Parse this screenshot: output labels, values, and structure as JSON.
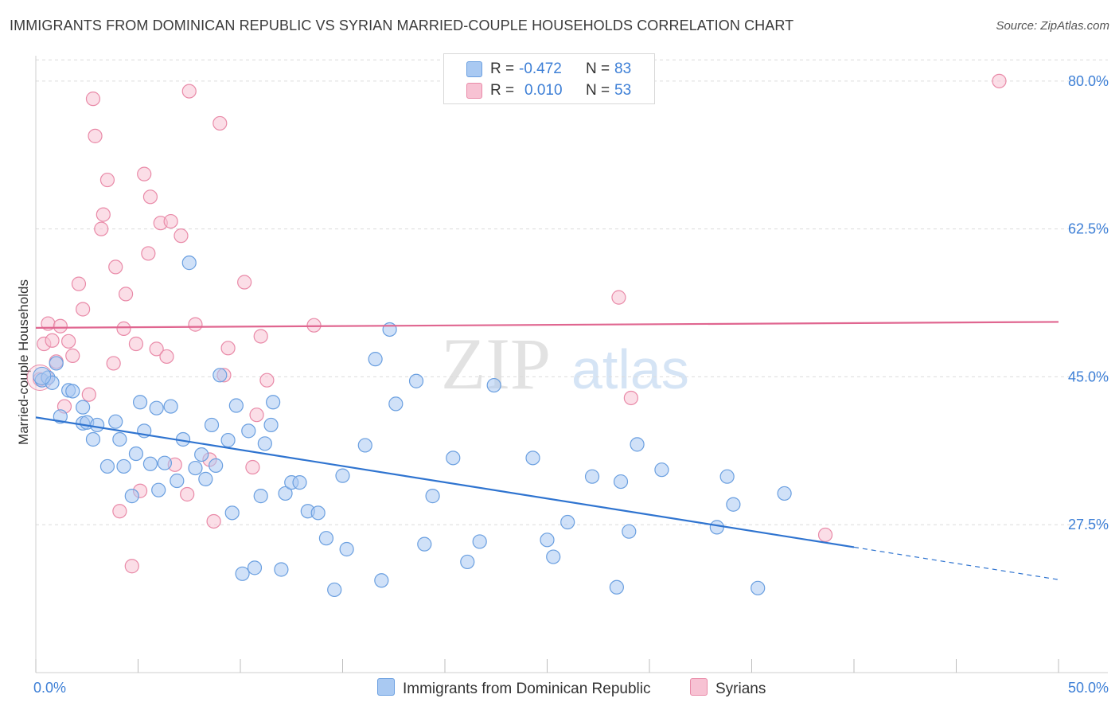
{
  "title": "IMMIGRANTS FROM DOMINICAN REPUBLIC VS SYRIAN MARRIED-COUPLE HOUSEHOLDS CORRELATION CHART",
  "source": "Source: ZipAtlas.com",
  "watermark": {
    "zip": "ZIP",
    "atlas": "atlas"
  },
  "legend": {
    "r_label": "R =",
    "n_label": "N =",
    "series1": {
      "r": "-0.472",
      "n": "83"
    },
    "series2": {
      "r": "0.010",
      "n": "53"
    }
  },
  "chart_data": {
    "type": "scatter",
    "title": "IMMIGRANTS FROM DOMINICAN REPUBLIC VS SYRIAN MARRIED-COUPLE HOUSEHOLDS CORRELATION CHART",
    "xlabel": "",
    "ylabel": "Married-couple Households",
    "xlim": [
      0,
      50
    ],
    "ylim": [
      10,
      83
    ],
    "x_tick_labels": [
      "0.0%",
      "50.0%"
    ],
    "y_ticks": [
      27.5,
      45.0,
      62.5,
      80.0
    ],
    "y_tick_labels": [
      "27.5%",
      "45.0%",
      "62.5%",
      "80.0%"
    ],
    "grid": true,
    "legend_position": "top-center",
    "colors": {
      "series1_fill": "#a9c9f2",
      "series1_stroke": "#6a9fe0",
      "series1_line": "#2f74d0",
      "series2_fill": "#f7c2d3",
      "series2_stroke": "#e98aa8",
      "series2_line": "#e06690",
      "tick_text": "#3d7fd6"
    },
    "series": [
      {
        "name": "Immigrants from Dominican Republic",
        "trend": {
          "x0": 0,
          "y0": 40.2,
          "x1": 50,
          "y1": 21.0,
          "solid_until_x": 40
        },
        "points": [
          [
            0.3,
            44.6
          ],
          [
            0.6,
            44.9
          ],
          [
            0.8,
            44.3
          ],
          [
            1.0,
            46.6
          ],
          [
            1.2,
            40.3
          ],
          [
            1.6,
            43.4
          ],
          [
            1.8,
            43.3
          ],
          [
            2.3,
            41.4
          ],
          [
            2.3,
            39.5
          ],
          [
            2.5,
            39.6
          ],
          [
            2.8,
            37.6
          ],
          [
            3.0,
            39.3
          ],
          [
            3.5,
            34.4
          ],
          [
            3.9,
            39.7
          ],
          [
            4.1,
            37.6
          ],
          [
            4.3,
            34.4
          ],
          [
            4.7,
            30.9
          ],
          [
            4.9,
            35.9
          ],
          [
            5.1,
            42.0
          ],
          [
            5.3,
            38.6
          ],
          [
            5.6,
            34.7
          ],
          [
            5.9,
            41.3
          ],
          [
            6.0,
            31.6
          ],
          [
            6.3,
            34.8
          ],
          [
            6.6,
            41.5
          ],
          [
            6.9,
            32.7
          ],
          [
            7.2,
            37.6
          ],
          [
            7.5,
            58.5
          ],
          [
            7.8,
            34.2
          ],
          [
            8.1,
            35.8
          ],
          [
            8.3,
            32.9
          ],
          [
            8.6,
            39.3
          ],
          [
            8.8,
            34.5
          ],
          [
            9.0,
            45.2
          ],
          [
            9.4,
            37.5
          ],
          [
            9.6,
            28.9
          ],
          [
            9.8,
            41.6
          ],
          [
            10.1,
            21.7
          ],
          [
            10.4,
            38.6
          ],
          [
            10.7,
            22.4
          ],
          [
            11.0,
            30.9
          ],
          [
            11.2,
            37.1
          ],
          [
            11.5,
            39.3
          ],
          [
            11.6,
            42.0
          ],
          [
            12.0,
            22.2
          ],
          [
            12.2,
            31.2
          ],
          [
            12.5,
            32.5
          ],
          [
            12.9,
            32.5
          ],
          [
            13.3,
            29.1
          ],
          [
            13.8,
            28.9
          ],
          [
            14.2,
            25.9
          ],
          [
            14.6,
            19.8
          ],
          [
            15.0,
            33.3
          ],
          [
            15.2,
            24.6
          ],
          [
            16.1,
            36.9
          ],
          [
            16.6,
            47.1
          ],
          [
            16.9,
            20.9
          ],
          [
            17.3,
            50.6
          ],
          [
            17.6,
            41.8
          ],
          [
            18.6,
            44.5
          ],
          [
            19.0,
            25.2
          ],
          [
            19.4,
            30.9
          ],
          [
            20.4,
            35.4
          ],
          [
            21.1,
            23.1
          ],
          [
            21.7,
            25.5
          ],
          [
            22.4,
            44.0
          ],
          [
            24.3,
            35.4
          ],
          [
            25.0,
            25.7
          ],
          [
            25.3,
            23.7
          ],
          [
            26.0,
            27.8
          ],
          [
            27.2,
            33.2
          ],
          [
            28.4,
            20.1
          ],
          [
            28.6,
            32.6
          ],
          [
            29.0,
            26.7
          ],
          [
            29.4,
            37.0
          ],
          [
            30.6,
            34.0
          ],
          [
            33.3,
            27.2
          ],
          [
            33.8,
            33.2
          ],
          [
            34.1,
            29.9
          ],
          [
            35.3,
            20.0
          ],
          [
            36.6,
            31.2
          ]
        ]
      },
      {
        "name": "Syrians",
        "trend": {
          "x0": 0,
          "y0": 50.8,
          "x1": 50,
          "y1": 51.5
        },
        "points": [
          [
            0.2,
            44.7
          ],
          [
            0.4,
            48.9
          ],
          [
            0.6,
            51.3
          ],
          [
            0.8,
            49.3
          ],
          [
            1.0,
            46.8
          ],
          [
            1.2,
            51.0
          ],
          [
            1.4,
            41.5
          ],
          [
            1.6,
            49.2
          ],
          [
            1.8,
            47.5
          ],
          [
            2.1,
            56.0
          ],
          [
            2.3,
            53.0
          ],
          [
            2.6,
            42.9
          ],
          [
            2.8,
            77.9
          ],
          [
            2.9,
            73.5
          ],
          [
            3.2,
            62.5
          ],
          [
            3.3,
            64.2
          ],
          [
            3.5,
            68.3
          ],
          [
            3.8,
            46.6
          ],
          [
            3.9,
            58.0
          ],
          [
            4.1,
            29.1
          ],
          [
            4.3,
            50.7
          ],
          [
            4.4,
            54.8
          ],
          [
            4.7,
            22.6
          ],
          [
            4.9,
            48.9
          ],
          [
            5.1,
            31.5
          ],
          [
            5.3,
            69.0
          ],
          [
            5.5,
            59.6
          ],
          [
            5.6,
            66.3
          ],
          [
            5.9,
            48.3
          ],
          [
            6.1,
            63.2
          ],
          [
            6.4,
            47.4
          ],
          [
            6.6,
            63.4
          ],
          [
            6.8,
            34.6
          ],
          [
            7.1,
            61.7
          ],
          [
            7.4,
            31.1
          ],
          [
            7.5,
            78.8
          ],
          [
            7.8,
            51.2
          ],
          [
            8.5,
            35.2
          ],
          [
            8.7,
            27.9
          ],
          [
            9.0,
            75.0
          ],
          [
            9.2,
            45.2
          ],
          [
            9.4,
            48.4
          ],
          [
            10.2,
            56.2
          ],
          [
            10.6,
            34.3
          ],
          [
            10.8,
            40.5
          ],
          [
            11.0,
            49.8
          ],
          [
            11.3,
            44.6
          ],
          [
            13.6,
            51.1
          ],
          [
            28.5,
            54.4
          ],
          [
            29.1,
            42.5
          ],
          [
            38.6,
            26.3
          ],
          [
            47.1,
            80.0
          ]
        ]
      }
    ]
  }
}
